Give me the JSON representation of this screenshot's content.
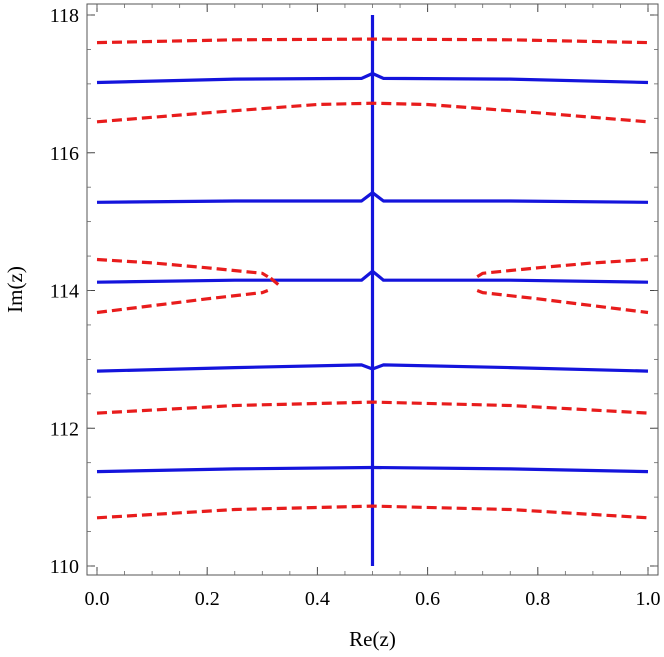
{
  "chart_data": {
    "type": "line",
    "title": "",
    "xlabel": "Re(z)",
    "ylabel": "Im(z)",
    "xlim": [
      0.0,
      1.0
    ],
    "ylim": [
      110.0,
      118.0
    ],
    "grid": false,
    "legend": "none",
    "x_ticks": [
      "0.0",
      "0.2",
      "0.4",
      "0.6",
      "0.8",
      "1.0"
    ],
    "y_ticks": [
      "110",
      "112",
      "114",
      "116",
      "118"
    ],
    "x_tick_values": [
      0.0,
      0.2,
      0.4,
      0.6,
      0.8,
      1.0
    ],
    "y_tick_values": [
      110,
      112,
      114,
      116,
      118
    ],
    "colors": {
      "blue": "#1414dc",
      "red": "#e81c1c"
    },
    "series": [
      {
        "color": "blue",
        "style": "solid",
        "x": [
          0.0,
          0.25,
          0.5,
          0.75,
          1.0
        ],
        "y": [
          111.37,
          111.41,
          111.43,
          111.41,
          111.37
        ]
      },
      {
        "color": "blue",
        "style": "solid",
        "x": [
          0.0,
          0.25,
          0.48,
          0.5,
          0.52,
          0.75,
          1.0
        ],
        "y": [
          112.83,
          112.88,
          112.92,
          112.86,
          112.92,
          112.88,
          112.83
        ]
      },
      {
        "color": "blue",
        "style": "solid",
        "x": [
          0.0,
          0.25,
          0.48,
          0.5,
          0.52,
          0.75,
          1.0
        ],
        "y": [
          114.12,
          114.15,
          114.15,
          114.28,
          114.15,
          114.15,
          114.12
        ]
      },
      {
        "color": "blue",
        "style": "solid",
        "x": [
          0.0,
          0.25,
          0.48,
          0.5,
          0.52,
          0.75,
          1.0
        ],
        "y": [
          115.28,
          115.3,
          115.3,
          115.42,
          115.3,
          115.3,
          115.28
        ]
      },
      {
        "color": "blue",
        "style": "solid",
        "x": [
          0.0,
          0.25,
          0.48,
          0.5,
          0.52,
          0.75,
          1.0
        ],
        "y": [
          117.02,
          117.07,
          117.08,
          117.15,
          117.08,
          117.07,
          117.02
        ]
      },
      {
        "color": "blue",
        "style": "solid",
        "x": [
          0.5,
          0.5
        ],
        "y": [
          110.0,
          118.0
        ]
      },
      {
        "color": "red",
        "style": "dashed",
        "x": [
          0.0,
          0.25,
          0.5,
          0.75,
          1.0
        ],
        "y": [
          110.7,
          110.82,
          110.87,
          110.82,
          110.7
        ]
      },
      {
        "color": "red",
        "style": "dashed",
        "x": [
          0.0,
          0.25,
          0.5,
          0.75,
          1.0
        ],
        "y": [
          112.22,
          112.33,
          112.38,
          112.33,
          112.22
        ]
      },
      {
        "color": "red",
        "style": "dashed",
        "x": [
          0.0,
          0.1,
          0.2,
          0.3,
          0.31
        ],
        "y": [
          113.68,
          113.78,
          113.88,
          113.97,
          114.0
        ]
      },
      {
        "color": "red",
        "style": "dashed",
        "x": [
          0.0,
          0.1,
          0.2,
          0.3,
          0.31
        ],
        "y": [
          114.45,
          114.4,
          114.33,
          114.25,
          114.2
        ]
      },
      {
        "color": "red",
        "style": "dashed",
        "x": [
          0.315,
          0.33
        ],
        "y": [
          114.18,
          114.08
        ]
      },
      {
        "color": "red",
        "style": "dashed",
        "x": [
          0.69,
          0.7,
          0.8,
          0.9,
          1.0
        ],
        "y": [
          114.0,
          113.97,
          113.88,
          113.78,
          113.68
        ]
      },
      {
        "color": "red",
        "style": "dashed",
        "x": [
          0.69,
          0.7,
          0.8,
          0.9,
          1.0
        ],
        "y": [
          114.2,
          114.25,
          114.33,
          114.4,
          114.45
        ]
      },
      {
        "color": "red",
        "style": "dashed",
        "x": [
          0.0,
          0.2,
          0.4,
          0.5,
          0.6,
          0.8,
          1.0
        ],
        "y": [
          116.45,
          116.58,
          116.7,
          116.72,
          116.7,
          116.58,
          116.45
        ]
      },
      {
        "color": "red",
        "style": "dashed",
        "x": [
          0.0,
          0.25,
          0.5,
          0.75,
          1.0
        ],
        "y": [
          117.6,
          117.64,
          117.65,
          117.64,
          117.6
        ]
      }
    ]
  }
}
